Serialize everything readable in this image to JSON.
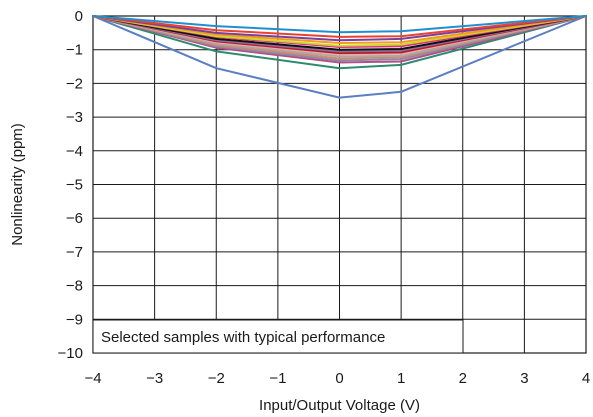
{
  "chart_data": {
    "type": "line",
    "xlabel": "Input/Output Voltage (V)",
    "ylabel": "Nonlinearity (ppm)",
    "xlim": [
      -4,
      4
    ],
    "ylim": [
      -10,
      0
    ],
    "x_ticks": [
      "−4",
      "−3",
      "−2",
      "−1",
      "0",
      "1",
      "2",
      "3",
      "4"
    ],
    "y_ticks": [
      "0",
      "−1",
      "−2",
      "−3",
      "−4",
      "−5",
      "−6",
      "−7",
      "−8",
      "−9",
      "−10"
    ],
    "grid": true,
    "legend": "none",
    "annotation": "Selected samples with typical performance",
    "x": [
      -4,
      -2,
      0,
      1,
      4
    ],
    "series": [
      {
        "color": "#1f8fd2",
        "values": [
          0,
          -0.3,
          -0.48,
          -0.45,
          0
        ]
      },
      {
        "color": "#e8432e",
        "values": [
          0,
          -0.42,
          -0.62,
          -0.6,
          0
        ]
      },
      {
        "color": "#7b3fa0",
        "values": [
          0,
          -0.5,
          -0.72,
          -0.68,
          0
        ]
      },
      {
        "color": "#f39a1e",
        "values": [
          0,
          -0.55,
          -0.8,
          -0.78,
          0
        ]
      },
      {
        "color": "#c5d82d",
        "values": [
          0,
          -0.6,
          -0.88,
          -0.85,
          0
        ]
      },
      {
        "color": "#e2277f",
        "values": [
          0,
          -0.62,
          -0.92,
          -0.9,
          0
        ]
      },
      {
        "color": "#111111",
        "values": [
          0,
          -0.68,
          -1.0,
          -0.98,
          0
        ]
      },
      {
        "color": "#8c6d9e",
        "values": [
          0,
          -0.72,
          -1.05,
          -1.03,
          0
        ]
      },
      {
        "color": "#b71c2c",
        "values": [
          0,
          -0.75,
          -1.1,
          -1.08,
          0
        ]
      },
      {
        "color": "#f0a8a0",
        "values": [
          0,
          -0.78,
          -1.14,
          -1.12,
          0
        ]
      },
      {
        "color": "#a9a9a9",
        "values": [
          0,
          -0.82,
          -1.2,
          -1.18,
          0
        ]
      },
      {
        "color": "#d08a6e",
        "values": [
          0,
          -0.86,
          -1.26,
          -1.22,
          0
        ]
      },
      {
        "color": "#8a8aa8",
        "values": [
          0,
          -0.9,
          -1.32,
          -1.28,
          0
        ]
      },
      {
        "color": "#b34f86",
        "values": [
          0,
          -0.94,
          -1.38,
          -1.35,
          0
        ]
      },
      {
        "color": "#2e8b6e",
        "values": [
          0,
          -1.05,
          -1.55,
          -1.45,
          0
        ]
      },
      {
        "color": "#5b7ec4",
        "values": [
          0,
          -1.55,
          -2.42,
          -2.25,
          0
        ]
      }
    ]
  }
}
